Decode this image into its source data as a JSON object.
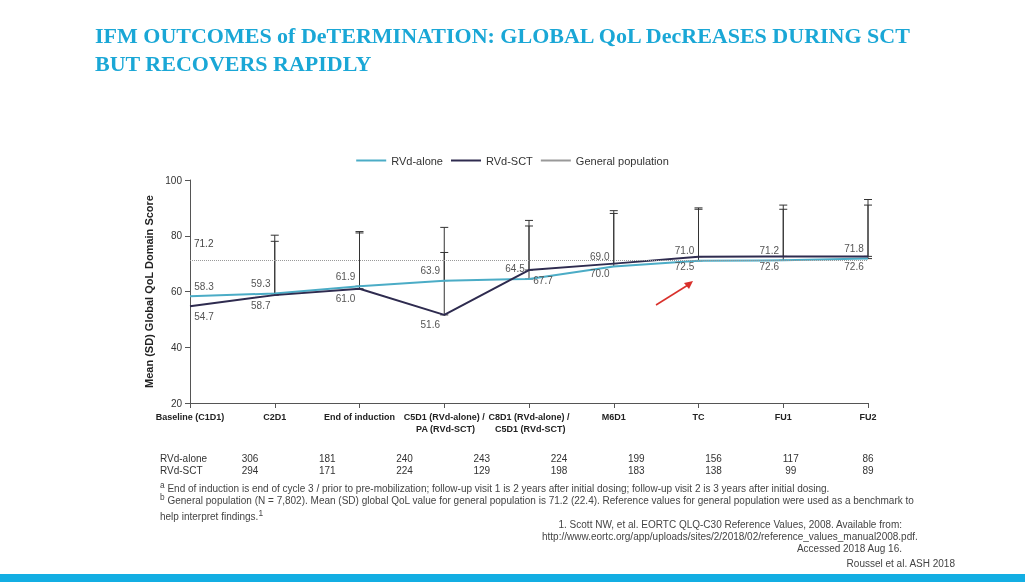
{
  "chart_data": {
    "type": "line",
    "title": "IFM OUTCOMES of DeTERMINATION:  GLOBAL QoL DecREASES DURING SCT BUT RECOVERS RAPIDLY",
    "ylabel": "Mean (SD) Global QoL Domain Score",
    "categories": [
      "Baseline (C1D1)",
      "C2D1",
      "End of induction",
      "C5D1 (RVd-alone) / PA (RVd-SCT)",
      "C8D1 (RVd-alone) / C5D1 (RVd-SCT)",
      "M6D1",
      "TC",
      "FU1",
      "FU2"
    ],
    "series": [
      {
        "name": "RVd-alone",
        "color": "#4bacc6",
        "values": [
          58.3,
          59.3,
          61.9,
          63.9,
          64.5,
          69.0,
          71.0,
          71.2,
          71.8
        ],
        "value_labels": [
          "58.3",
          "59.3",
          "61.9",
          "63.9",
          "64.5",
          "69.0",
          "71.0",
          "71.2",
          "71.8"
        ],
        "errors": [
          null,
          [
            59.3,
            80.2
          ],
          [
            61.9,
            81.5
          ],
          [
            63.9,
            83
          ],
          [
            64.5,
            85.5
          ],
          [
            69.0,
            89
          ],
          [
            71.0,
            90
          ],
          [
            71.2,
            91
          ],
          [
            71.8,
            93
          ]
        ]
      },
      {
        "name": "RVd-SCT",
        "color": "#2e2b4f",
        "values": [
          54.7,
          58.7,
          61.0,
          51.6,
          67.7,
          70.0,
          72.5,
          72.6,
          72.6
        ],
        "value_labels": [
          "54.7",
          "58.7",
          "61.0",
          "51.6",
          "67.7",
          "70.0",
          "72.5",
          "72.6",
          "72.6"
        ],
        "errors": [
          null,
          [
            58.7,
            78
          ],
          [
            61.0,
            81
          ],
          [
            51.6,
            74
          ],
          [
            67.7,
            83.5
          ],
          [
            70.0,
            88
          ],
          [
            72.5,
            89.5
          ],
          [
            72.6,
            89.5
          ],
          [
            72.6,
            91
          ]
        ]
      }
    ],
    "ylim": [
      20,
      100
    ],
    "yticks": [
      20,
      40,
      60,
      80,
      100
    ],
    "grid": false,
    "legend": "top",
    "marker": "none",
    "line_style": "solid",
    "ref_lines": [
      {
        "axis": "y",
        "value": 71.2,
        "label": "General population",
        "color": "#999999",
        "line_style": "dotted"
      }
    ],
    "annotations": [
      {
        "text": "71.2",
        "x": "Baseline (C1D1)",
        "y": 71.2
      },
      "RVd-alone",
      "306",
      "181",
      "240",
      "243",
      "224",
      "199",
      "156",
      "117",
      "86",
      "RVd-SCT",
      "294",
      "171",
      "224",
      "129",
      "198",
      "183",
      "138",
      "99",
      "89",
      "$^{a}$ End of induction is end of cycle 3 / prior to  pre-mobilization; follow-up visit 1 is 2 years  after initial dosing; follow-up visit 2 is 3 years  after initial dosing.",
      "$^{b}$ General population (N = 7,802). Mean  (SD) global QoL value for general population is 71.2 (22.4). Reference values for general population were used as a benchmark to help interpret findings.$^{1}$",
      "1. Scott NW, et al. EORTC  QLQ-C30 Reference Values, 2008. Available from: http://www.eortc.org/app/uploads/sites/2/2018/02/reference_values_manual2008.pdf. Accessed 2018 Aug 16.",
      "Roussel  et al. ASH 2018"
    ]
  }
}
